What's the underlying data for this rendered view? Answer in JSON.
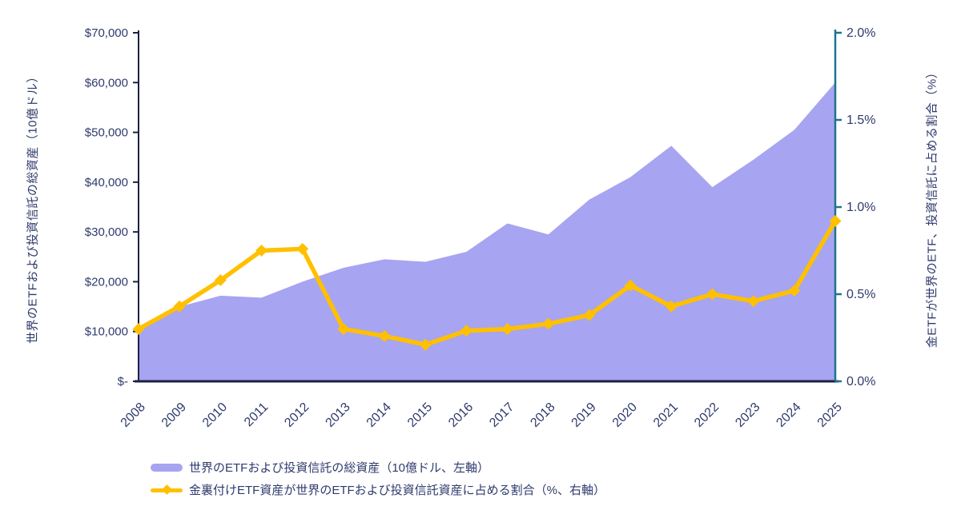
{
  "chart_data": {
    "type": "combo",
    "title": "",
    "categories": [
      "2008",
      "2009",
      "2010",
      "2011",
      "2012",
      "2013",
      "2014",
      "2015",
      "2016",
      "2017",
      "2018",
      "2019",
      "2020",
      "2021",
      "2022",
      "2023",
      "2024",
      "2025"
    ],
    "series": [
      {
        "name": "世界のETFおよび投資信託の総資産（10億ドル、左軸）",
        "type": "area",
        "axis": "left",
        "color": "#a7a4f1",
        "values": [
          11000,
          15000,
          17200,
          16800,
          20000,
          22800,
          24500,
          24000,
          26000,
          31700,
          29500,
          36500,
          41000,
          47300,
          39000,
          44500,
          50500,
          60000
        ]
      },
      {
        "name": "金裏付けETF資産が世界のETFおよび投資信託資産に占める割合（%、右軸）",
        "type": "line",
        "axis": "right",
        "color": "#ffc000",
        "values": [
          0.3,
          0.43,
          0.58,
          0.75,
          0.76,
          0.3,
          0.26,
          0.21,
          0.29,
          0.3,
          0.33,
          0.38,
          0.55,
          0.43,
          0.5,
          0.46,
          0.52,
          0.92
        ]
      }
    ],
    "left_axis": {
      "label": "世界のETFおよび投資信託の総資産（10億ドル）",
      "min": 0,
      "max": 70000,
      "tick_step": 10000,
      "tick_labels": [
        "$-",
        "$10,000",
        "$20,000",
        "$30,000",
        "$40,000",
        "$50,000",
        "$60,000",
        "$70,000"
      ]
    },
    "right_axis": {
      "label": "金ETFが世界のETF、投資信託に占める割合（%）",
      "min": 0,
      "max": 2,
      "tick_step": 0.5,
      "tick_labels": [
        "0.0%",
        "0.5%",
        "1.0%",
        "1.5%",
        "2.0%"
      ]
    },
    "x_axis": {
      "label_rotation_deg": -45
    },
    "grid": false,
    "legend_position": "bottom-left"
  },
  "colors": {
    "area_fill": "#a7a4f1",
    "gold_line": "#ffc000",
    "axis_line": "#1b2142",
    "right_axis_line": "#1e738c",
    "text": "#2f3a6d"
  }
}
